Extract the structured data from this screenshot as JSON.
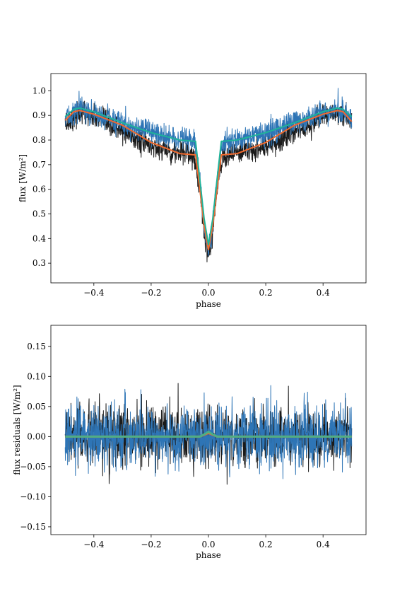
{
  "chart_data": [
    {
      "type": "line",
      "xlabel": "phase",
      "ylabel": "flux [W/m²]",
      "xlim": [
        -0.55,
        0.55
      ],
      "ylim": [
        0.22,
        1.07
      ],
      "xticks": [
        -0.4,
        -0.2,
        0.0,
        0.2,
        0.4
      ],
      "xtick_labels": [
        "−0.4",
        "−0.2",
        "0.0",
        "0.2",
        "0.4"
      ],
      "yticks": [
        0.3,
        0.4,
        0.5,
        0.6,
        0.7,
        0.8,
        0.9,
        1.0
      ],
      "ytick_labels": [
        "0.3",
        "0.4",
        "0.5",
        "0.6",
        "0.7",
        "0.8",
        "0.9",
        "1.0"
      ],
      "grid": false,
      "series": [
        {
          "kind": "noisy-observations",
          "color": "#1a1a1a",
          "x": [
            -0.5,
            -0.45,
            -0.4,
            -0.3,
            -0.2,
            -0.1,
            -0.05,
            -0.03,
            -0.01,
            0.0,
            0.01,
            0.03,
            0.05,
            0.1,
            0.2,
            0.3,
            0.4,
            0.45,
            0.5
          ],
          "y": [
            0.865,
            0.915,
            0.895,
            0.835,
            0.775,
            0.745,
            0.74,
            0.6,
            0.38,
            0.34,
            0.38,
            0.6,
            0.74,
            0.745,
            0.775,
            0.835,
            0.895,
            0.915,
            0.87
          ],
          "noise": 0.04
        },
        {
          "kind": "noisy-observations",
          "color": "#2e75b6",
          "x": [
            -0.5,
            -0.45,
            -0.4,
            -0.3,
            -0.2,
            -0.1,
            -0.05,
            -0.03,
            -0.01,
            0.0,
            0.01,
            0.03,
            0.05,
            0.1,
            0.2,
            0.3,
            0.4,
            0.45,
            0.5
          ],
          "y": [
            0.885,
            0.925,
            0.91,
            0.87,
            0.83,
            0.8,
            0.795,
            0.63,
            0.41,
            0.37,
            0.41,
            0.63,
            0.795,
            0.8,
            0.83,
            0.87,
            0.91,
            0.925,
            0.89
          ],
          "noise": 0.04
        },
        {
          "kind": "model",
          "color": "#f06a2e",
          "x": [
            -0.5,
            -0.47,
            -0.45,
            -0.4,
            -0.3,
            -0.2,
            -0.1,
            -0.05,
            -0.045,
            -0.03,
            -0.015,
            0.0,
            0.015,
            0.03,
            0.045,
            0.05,
            0.1,
            0.2,
            0.3,
            0.4,
            0.45,
            0.47,
            0.5
          ],
          "y": [
            0.88,
            0.915,
            0.92,
            0.905,
            0.86,
            0.79,
            0.745,
            0.74,
            0.74,
            0.6,
            0.45,
            0.355,
            0.45,
            0.6,
            0.74,
            0.74,
            0.745,
            0.79,
            0.86,
            0.905,
            0.92,
            0.915,
            0.875
          ]
        },
        {
          "kind": "model",
          "color": "#1fb39a",
          "x": [
            -0.5,
            -0.47,
            -0.45,
            -0.4,
            -0.3,
            -0.2,
            -0.1,
            -0.05,
            -0.045,
            -0.03,
            -0.015,
            0.0,
            0.015,
            0.03,
            0.045,
            0.05,
            0.1,
            0.2,
            0.3,
            0.4,
            0.45,
            0.47,
            0.5
          ],
          "y": [
            0.895,
            0.925,
            0.93,
            0.915,
            0.87,
            0.83,
            0.8,
            0.795,
            0.795,
            0.64,
            0.48,
            0.375,
            0.48,
            0.64,
            0.795,
            0.795,
            0.8,
            0.83,
            0.87,
            0.915,
            0.93,
            0.925,
            0.895
          ]
        }
      ]
    },
    {
      "type": "line",
      "xlabel": "phase",
      "ylabel": "flux residuals [W/m²]",
      "xlim": [
        -0.55,
        0.55
      ],
      "ylim": [
        -0.163,
        0.185
      ],
      "xticks": [
        -0.4,
        -0.2,
        0.0,
        0.2,
        0.4
      ],
      "xtick_labels": [
        "−0.4",
        "−0.2",
        "0.0",
        "0.2",
        "0.4"
      ],
      "yticks": [
        -0.15,
        -0.1,
        -0.05,
        0.0,
        0.05,
        0.1,
        0.15
      ],
      "ytick_labels": [
        "−0.15",
        "−0.10",
        "−0.05",
        "0.00",
        "0.05",
        "0.10",
        "0.15"
      ],
      "grid": false,
      "series": [
        {
          "kind": "noisy-residuals",
          "color": "#1a1a1a",
          "x": [
            -0.5,
            0.5
          ],
          "y": [
            0.0,
            0.0
          ],
          "noise": 0.04
        },
        {
          "kind": "noisy-residuals",
          "color": "#2e75b6",
          "x": [
            -0.5,
            0.5
          ],
          "y": [
            0.0,
            0.0
          ],
          "noise": 0.04
        },
        {
          "kind": "model",
          "color": "#f06a2e",
          "x": [
            -0.5,
            -0.03,
            -0.01,
            0.0,
            0.01,
            0.03,
            0.5
          ],
          "y": [
            0.0,
            0.0,
            0.004,
            0.006,
            0.004,
            0.0,
            0.0
          ]
        },
        {
          "kind": "model",
          "color": "#4caf86",
          "x": [
            -0.5,
            -0.03,
            -0.01,
            0.0,
            0.01,
            0.03,
            0.5
          ],
          "y": [
            0.0,
            0.0,
            0.005,
            0.008,
            0.005,
            0.0,
            0.0
          ]
        }
      ]
    }
  ]
}
